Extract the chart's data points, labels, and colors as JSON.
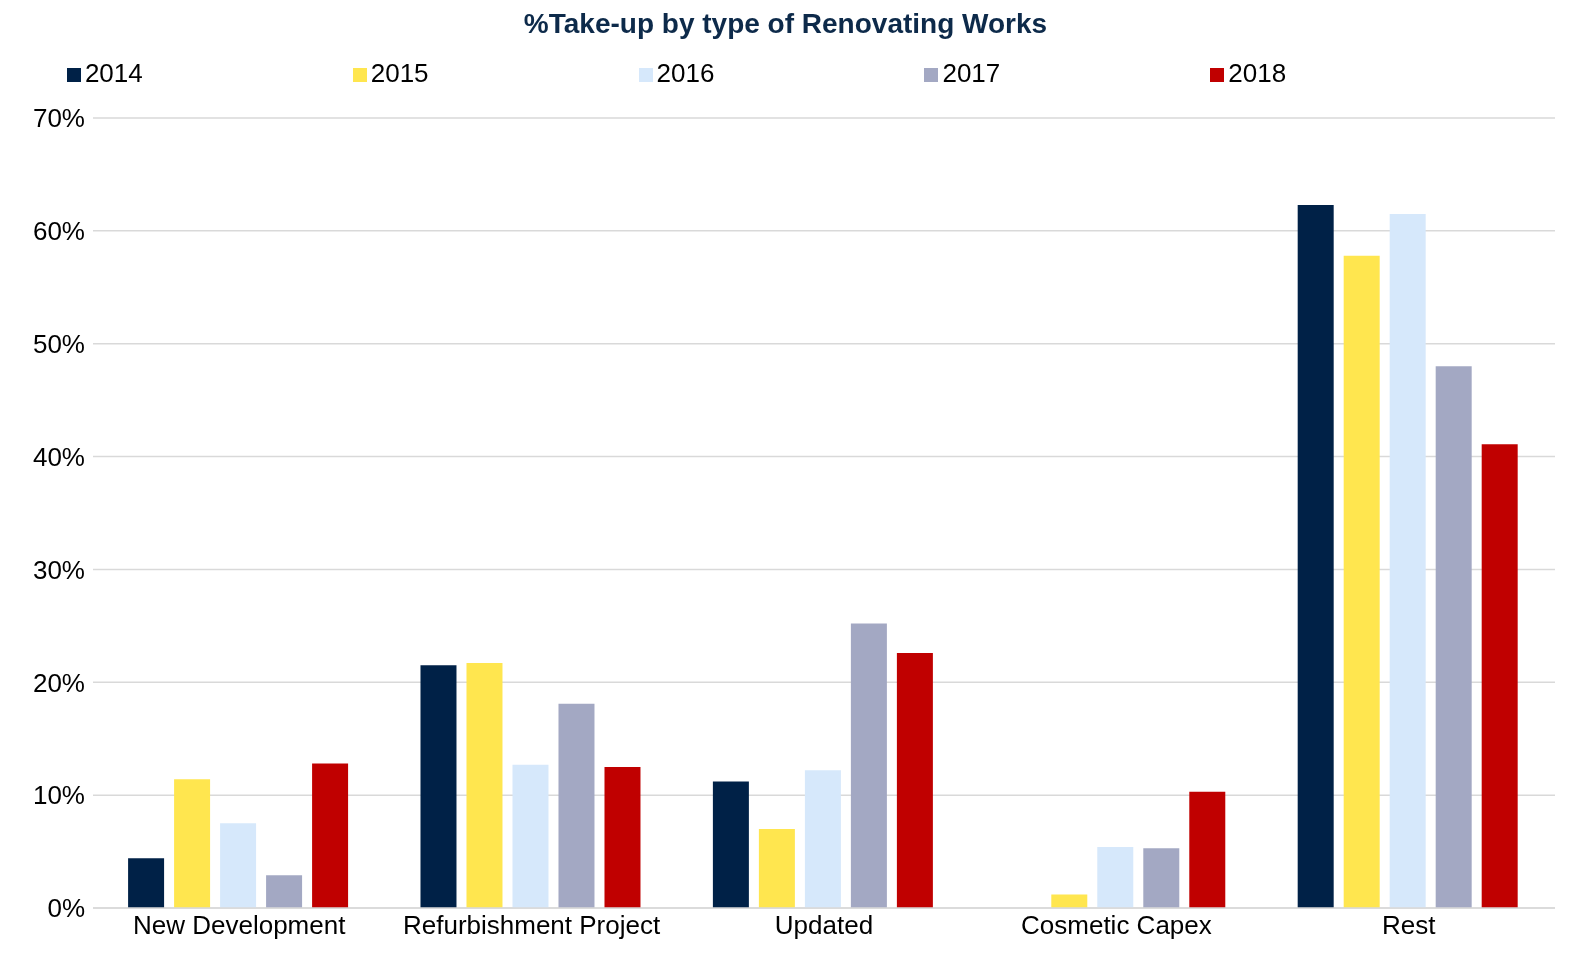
{
  "chart_data": {
    "type": "bar",
    "title": "%Take-up by type of Renovating Works",
    "categories": [
      "New Development",
      "Refurbishment Project",
      "Updated",
      "Cosmetic Capex",
      "Rest"
    ],
    "series": [
      {
        "name": "2014",
        "color": "#002147",
        "values": [
          4.4,
          21.5,
          11.2,
          0,
          62.3
        ]
      },
      {
        "name": "2015",
        "color": "#ffe64f",
        "values": [
          11.4,
          21.7,
          7.0,
          1.2,
          57.8
        ]
      },
      {
        "name": "2016",
        "color": "#d6e8fb",
        "values": [
          7.5,
          12.7,
          12.2,
          5.4,
          61.5
        ]
      },
      {
        "name": "2017",
        "color": "#a3a8c3",
        "values": [
          2.9,
          18.1,
          25.2,
          5.3,
          48.0
        ]
      },
      {
        "name": "2018",
        "color": "#c00000",
        "values": [
          12.8,
          12.5,
          22.6,
          10.3,
          41.1
        ]
      }
    ],
    "ylim": [
      0,
      70
    ],
    "yticks": [
      {
        "value": 0,
        "label": "0%"
      },
      {
        "value": 10,
        "label": "10%"
      },
      {
        "value": 20,
        "label": "20%"
      },
      {
        "value": 30,
        "label": "30%"
      },
      {
        "value": 40,
        "label": "40%"
      },
      {
        "value": 50,
        "label": "50%"
      },
      {
        "value": 60,
        "label": "60%"
      },
      {
        "value": 70,
        "label": "70%"
      }
    ],
    "grid": "y",
    "legend": "top"
  }
}
